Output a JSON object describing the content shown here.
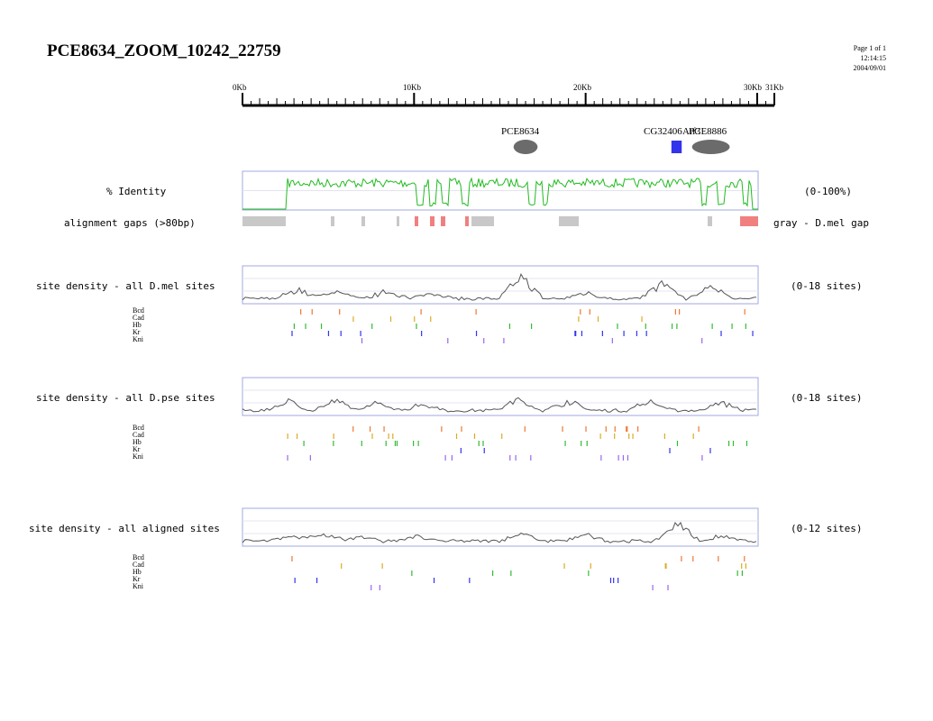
{
  "header": {
    "title": "PCE8634_ZOOM_10242_22759",
    "page": "Page 1 of 1",
    "time": "12:14:15",
    "date": "2004/09/01"
  },
  "ruler": {
    "ticks": [
      "0Kb",
      "10Kb",
      "20Kb",
      "30Kb",
      "31Kb"
    ],
    "min_kb": 0,
    "max_kb": 31
  },
  "genes": [
    {
      "name": "PCE8634",
      "shape": "ellipse",
      "color": "#6b6b6b",
      "start_kb": 15.8,
      "end_kb": 17.2
    },
    {
      "name": "CG32406",
      "shape": "rect",
      "color": "#3333ee",
      "start_kb": 25.0,
      "end_kb": 25.6
    },
    {
      "name": "PCE8886",
      "shape": "ellipse",
      "color": "#6b6b6b",
      "start_kb": 26.2,
      "end_kb": 28.4
    },
    {
      "name": "Atf3",
      "shape": "label",
      "color": "#000000",
      "start_kb": 26.0,
      "end_kb": 27.0
    }
  ],
  "identity": {
    "label": "% Identity",
    "range_label": "(0-100%)",
    "color": "#22bb22"
  },
  "gaps": {
    "label": "alignment gaps (>80bp)",
    "legend": "gray - D.mel gap",
    "gray_color": "#c8c8c8",
    "red_color": "#f08080"
  },
  "panels": [
    {
      "key": "dmel",
      "label": "site density - all D.mel sites",
      "range_label": "(0-18 sites)"
    },
    {
      "key": "dpse",
      "label": "site density - all D.pse sites",
      "range_label": "(0-18 sites)"
    },
    {
      "key": "aligned",
      "label": "site density - all aligned sites",
      "range_label": "(0-12 sites)"
    }
  ],
  "factors": [
    {
      "name": "Bcd",
      "color": "#ee7733"
    },
    {
      "name": "Cad",
      "color": "#ddaa22"
    },
    {
      "name": "Hb",
      "color": "#33bb33"
    },
    {
      "name": "Kr",
      "color": "#3333ee"
    },
    {
      "name": "Kni",
      "color": "#9966ee"
    }
  ],
  "colors": {
    "frame": "#a0a8e0",
    "density_line": "#555555",
    "grid": "#e4e4f0"
  }
}
